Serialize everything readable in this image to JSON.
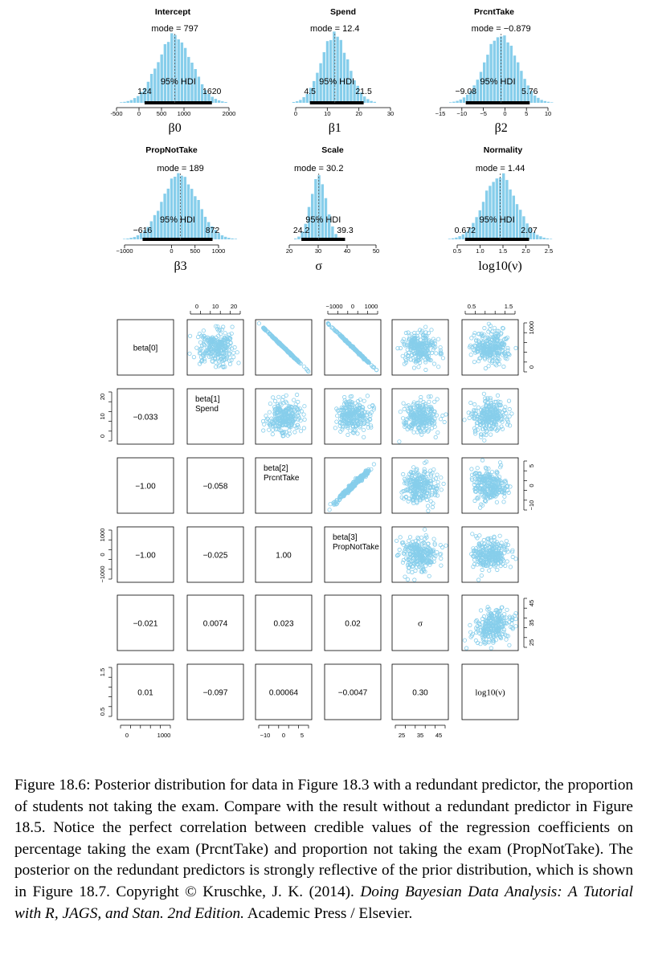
{
  "colors": {
    "hist": "#87CEEB",
    "points": "#87CEEB",
    "hdi_bar": "#000000",
    "frame": "#000000"
  },
  "chart_data": [
    {
      "type": "histogram",
      "title": "Intercept",
      "mode_label": "mode = 797",
      "hdi_label": "95% HDI",
      "hdi": [
        124,
        1620
      ],
      "hdi_low_label": "124",
      "hdi_high_label": "1620",
      "xlabel": "β0",
      "xlim": [
        -500,
        2000
      ],
      "xticks": [
        "-500",
        "0",
        "500",
        "1000",
        "2000"
      ],
      "mode": 797
    },
    {
      "type": "histogram",
      "title": "Spend",
      "mode_label": "mode = 12.4",
      "hdi_label": "95% HDI",
      "hdi": [
        4.5,
        21.5
      ],
      "hdi_low_label": "4.5",
      "hdi_high_label": "21.5",
      "xlabel": "β1",
      "xlim": [
        0,
        30
      ],
      "xticks": [
        "0",
        "10",
        "20",
        "30"
      ],
      "mode": 12.4
    },
    {
      "type": "histogram",
      "title": "PrcntTake",
      "mode_label": "mode = −0.879",
      "hdi_label": "95% HDI",
      "hdi": [
        -9.08,
        5.76
      ],
      "hdi_low_label": "−9.08",
      "hdi_high_label": "5.76",
      "xlabel": "β2",
      "xlim": [
        -15,
        10
      ],
      "xticks": [
        "−15",
        "−10",
        "−5",
        "0",
        "5",
        "10"
      ],
      "mode": -0.879
    },
    {
      "type": "histogram",
      "title": "PropNotTake",
      "mode_label": "mode = 189",
      "hdi_label": "95% HDI",
      "hdi": [
        -616,
        872
      ],
      "hdi_low_label": "−616",
      "hdi_high_label": "872",
      "xlabel": "β3",
      "xlim": [
        -1000,
        1000
      ],
      "xticks": [
        "−1000",
        "0",
        "500",
        "1000"
      ],
      "mode": 189
    },
    {
      "type": "histogram",
      "title": "Scale",
      "mode_label": "mode = 30.2",
      "hdi_label": "95% HDI",
      "hdi": [
        24.2,
        39.3
      ],
      "hdi_low_label": "24.2",
      "hdi_high_label": "39.3",
      "xlabel": "σ",
      "xlim": [
        20,
        50
      ],
      "xticks": [
        "20",
        "30",
        "40",
        "50"
      ],
      "mode": 30.2
    },
    {
      "type": "histogram",
      "title": "Normality",
      "mode_label": "mode = 1.44",
      "hdi_label": "95% HDI",
      "hdi": [
        0.672,
        2.07
      ],
      "hdi_low_label": "0.672",
      "hdi_high_label": "2.07",
      "xlabel": "log10(ν)",
      "xlim": [
        0.5,
        2.5
      ],
      "xticks": [
        "0.5",
        "1.0",
        "1.5",
        "2.0",
        "2.5"
      ],
      "mode": 1.44
    },
    {
      "type": "scatter-matrix",
      "variables": [
        "beta[0]",
        "beta[1]\nSpend",
        "beta[2]\nPrcntTake",
        "beta[3]\nPropNotTake",
        "σ",
        "log10(ν)"
      ],
      "correlations": [
        {
          "row": 2,
          "col": 1,
          "label": "−0.033"
        },
        {
          "row": 3,
          "col": 1,
          "label": "−1.00"
        },
        {
          "row": 3,
          "col": 2,
          "label": "−0.058"
        },
        {
          "row": 4,
          "col": 1,
          "label": "−1.00"
        },
        {
          "row": 4,
          "col": 2,
          "label": "−0.025"
        },
        {
          "row": 4,
          "col": 3,
          "label": "1.00"
        },
        {
          "row": 5,
          "col": 1,
          "label": "−0.021"
        },
        {
          "row": 5,
          "col": 2,
          "label": "0.0074"
        },
        {
          "row": 5,
          "col": 3,
          "label": "0.023"
        },
        {
          "row": 5,
          "col": 4,
          "label": "0.02"
        },
        {
          "row": 6,
          "col": 1,
          "label": "0.01"
        },
        {
          "row": 6,
          "col": 2,
          "label": "−0.097"
        },
        {
          "row": 6,
          "col": 3,
          "label": "0.00064"
        },
        {
          "row": 6,
          "col": 4,
          "label": "−0.0047"
        },
        {
          "row": 6,
          "col": 5,
          "label": "0.30"
        }
      ],
      "scatter_panels": [
        {
          "row": 1,
          "col": 2,
          "relation": "blob"
        },
        {
          "row": 1,
          "col": 3,
          "relation": "negative-line"
        },
        {
          "row": 1,
          "col": 4,
          "relation": "negative-line"
        },
        {
          "row": 1,
          "col": 5,
          "relation": "blob"
        },
        {
          "row": 1,
          "col": 6,
          "relation": "blob"
        },
        {
          "row": 2,
          "col": 3,
          "relation": "blob"
        },
        {
          "row": 2,
          "col": 4,
          "relation": "blob"
        },
        {
          "row": 2,
          "col": 5,
          "relation": "blob"
        },
        {
          "row": 2,
          "col": 6,
          "relation": "blob"
        },
        {
          "row": 3,
          "col": 4,
          "relation": "positive-line"
        },
        {
          "row": 3,
          "col": 5,
          "relation": "blob"
        },
        {
          "row": 3,
          "col": 6,
          "relation": "blob"
        },
        {
          "row": 4,
          "col": 5,
          "relation": "blob"
        },
        {
          "row": 4,
          "col": 6,
          "relation": "blob"
        },
        {
          "row": 5,
          "col": 6,
          "relation": "weak-positive"
        }
      ],
      "top_ticks": [
        {
          "col": 2,
          "labels": [
            "0",
            "10",
            "20"
          ]
        },
        {
          "col": 4,
          "labels": [
            "−1000",
            "0",
            "1000"
          ]
        },
        {
          "col": 6,
          "labels": [
            "0.5",
            "1.5"
          ]
        }
      ],
      "bottom_ticks": [
        {
          "col": 1,
          "labels": [
            "0",
            "1000"
          ]
        },
        {
          "col": 3,
          "labels": [
            "−10",
            "0",
            "5"
          ]
        },
        {
          "col": 5,
          "labels": [
            "25",
            "35",
            "45"
          ]
        }
      ],
      "left_ticks": [
        {
          "row": 2,
          "labels": [
            "0",
            "10",
            "20"
          ]
        },
        {
          "row": 4,
          "labels": [
            "−1000",
            "0",
            "1000"
          ]
        },
        {
          "row": 6,
          "labels": [
            "0.5",
            "1.5"
          ]
        }
      ],
      "right_ticks": [
        {
          "row": 1,
          "labels": [
            "0",
            "1000"
          ]
        },
        {
          "row": 3,
          "labels": [
            "−10",
            "0",
            "5"
          ]
        },
        {
          "row": 5,
          "labels": [
            "25",
            "35",
            "45"
          ]
        }
      ]
    }
  ],
  "caption": {
    "text": "Figure 18.6: Posterior distribution for data in Figure 18.3 with a redundant predictor, the proportion of students not taking the exam. Compare with the result without a redundant predictor in Figure 18.5. Notice the perfect correlation between credible values of the regression coefficients on percentage taking the exam (PrcntTake) and proportion not taking the exam (PropNotTake). The posterior on the redundant predictors is strongly reflective of the prior distribution, which is shown in Figure 18.7. Copyright © Kruschke, J. K. (2014). ",
    "citation": "Doing Bayesian Data Analysis: A Tutorial with R, JAGS, and Stan. 2nd Edition.",
    "publisher": " Academic Press / Elsevier."
  }
}
